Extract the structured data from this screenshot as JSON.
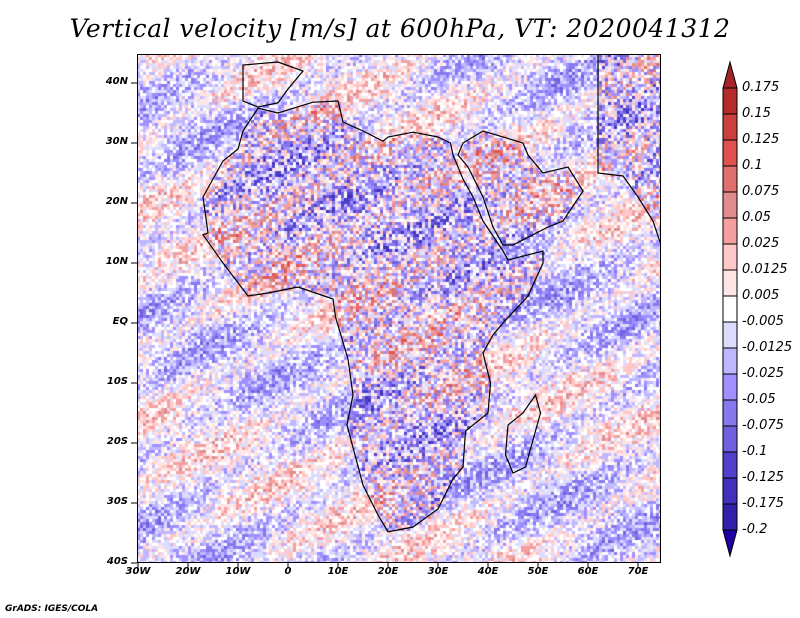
{
  "title": "Vertical velocity [m/s] at 600hPa, VT: 2020041312",
  "footer": "GrADS: IGES/COLA",
  "map": {
    "variable": "Vertical velocity",
    "units": "m/s",
    "level": "600hPa",
    "valid_time": "2020041312",
    "lat_labels": [
      "40N",
      "30N",
      "20N",
      "10N",
      "EQ",
      "10S",
      "20S",
      "30S",
      "40S"
    ],
    "lat_values": [
      40,
      30,
      20,
      10,
      0,
      -10,
      -20,
      -30,
      -40
    ],
    "lon_labels": [
      "30W",
      "20W",
      "10W",
      "0",
      "10E",
      "20E",
      "30E",
      "40E",
      "50E",
      "60E",
      "70E"
    ],
    "lon_values": [
      -30,
      -20,
      -10,
      0,
      10,
      20,
      30,
      40,
      50,
      60,
      70
    ],
    "lon_range": [
      -30,
      75
    ],
    "lat_range": [
      -40,
      45
    ]
  },
  "colorbar": {
    "labels": [
      "0.175",
      "0.15",
      "0.125",
      "0.1",
      "0.075",
      "0.05",
      "0.025",
      "0.0125",
      "0.005",
      "-0.005",
      "-0.0125",
      "-0.025",
      "-0.05",
      "-0.075",
      "-0.1",
      "-0.125",
      "-0.175",
      "-0.2"
    ],
    "top_triangle_color": "#a3242a",
    "bottom_triangle_color": "#2000a0",
    "box_colors": [
      "#b52a2a",
      "#cc3f3f",
      "#e05252",
      "#e07070",
      "#e08c8c",
      "#f5a0a0",
      "#ffc8c8",
      "#ffe6e6",
      "#ffffff",
      "#dcdcff",
      "#c0b8ff",
      "#a090ff",
      "#8878ee",
      "#7060dd",
      "#5040cc",
      "#4030bb",
      "#3020aa"
    ]
  }
}
